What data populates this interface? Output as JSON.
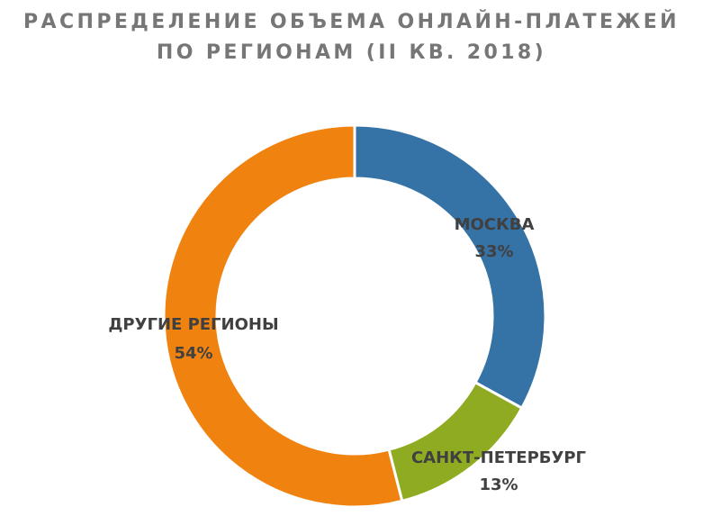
{
  "title": {
    "line1": "РАСПРЕДЕЛЕНИЕ ОБЪЕМА ОНЛАЙН-ПЛАТЕЖЕЙ",
    "line2": "ПО РЕГИОНАМ (II КВ. 2018)"
  },
  "chart_data": {
    "type": "pie",
    "title": "РАСПРЕДЕЛЕНИЕ ОБЪЕМА ОНЛАЙН-ПЛАТЕЖЕЙ ПО РЕГИОНАМ (II КВ. 2018)",
    "donut": true,
    "unit": "%",
    "slices": [
      {
        "label": "МОСКВА",
        "value": 33,
        "value_label": "33%",
        "color": "#3572a5"
      },
      {
        "label": "САНКТ-ПЕТЕРБУРГ",
        "value": 13,
        "value_label": "13%",
        "color": "#8fab22"
      },
      {
        "label": "ДРУГИЕ РЕГИОНЫ",
        "value": 54,
        "value_label": "54%",
        "color": "#f0820f"
      }
    ],
    "legend": "none",
    "data_labels": "category and value"
  }
}
